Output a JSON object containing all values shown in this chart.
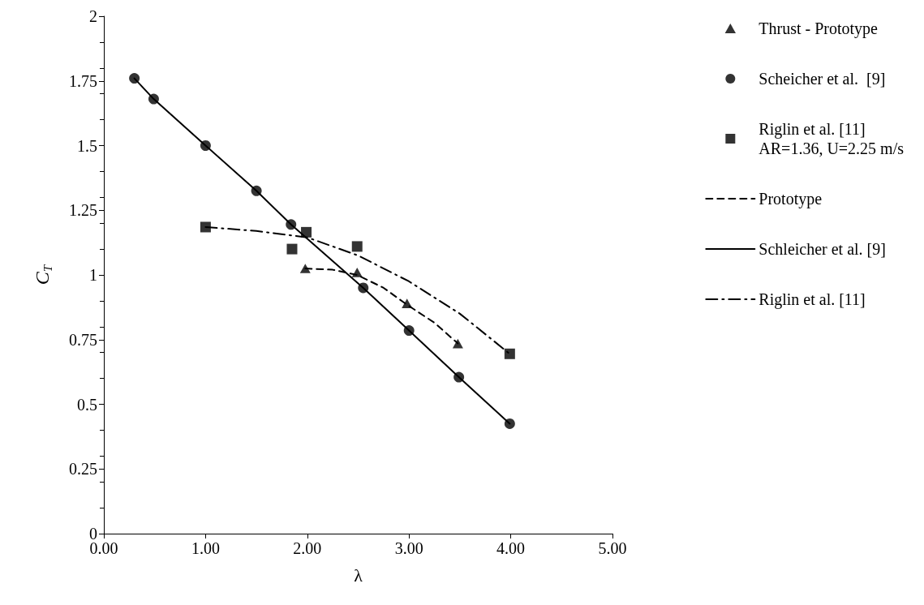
{
  "chart_data": {
    "type": "scatter",
    "xlabel": "λ",
    "ylabel": "C$_{T}$",
    "xlim": [
      0,
      5
    ],
    "xticks": [
      {
        "value": 0,
        "label": "0.00"
      },
      {
        "value": 1,
        "label": "1.00"
      },
      {
        "value": 2,
        "label": "2.00"
      },
      {
        "value": 3,
        "label": "3.00"
      },
      {
        "value": 4,
        "label": "4.00"
      },
      {
        "value": 5,
        "label": "5.00"
      }
    ],
    "ylim": [
      0,
      2
    ],
    "yticks": [
      0,
      0.25,
      0.5,
      0.75,
      1,
      1.25,
      1.5,
      1.75,
      2
    ],
    "grid": false,
    "legend": "right",
    "series": [
      {
        "name": "Thrust - Prototype",
        "type": "scatter",
        "marker": "triangle",
        "color": "#000000",
        "x": [
          1.98,
          2.49,
          2.98,
          3.48
        ],
        "values": [
          1.025,
          1.01,
          0.89,
          0.735
        ]
      },
      {
        "name": "Scheicher et al.  [9]",
        "type": "scatter",
        "marker": "circle",
        "color": "#000000",
        "x": [
          0.3,
          0.49,
          1.0,
          1.5,
          1.84,
          2.55,
          3.0,
          3.49,
          3.99
        ],
        "values": [
          1.76,
          1.68,
          1.5,
          1.325,
          1.195,
          0.95,
          0.785,
          0.605,
          0.425
        ]
      },
      {
        "name": "Riglin et al. [11]\nAR=1.36, U=2.25 m/s",
        "type": "scatter",
        "marker": "square",
        "color": "#000000",
        "x": [
          1.0,
          1.85,
          1.99,
          2.49,
          3.99
        ],
        "values": [
          1.185,
          1.1,
          1.165,
          1.11,
          0.695
        ]
      },
      {
        "name": "Prototype",
        "type": "line",
        "line_style": "dashed",
        "color": "#000000",
        "x": [
          1.98,
          2.25,
          2.49,
          2.75,
          2.98,
          3.25,
          3.48
        ],
        "values": [
          1.025,
          1.02,
          1.0,
          0.95,
          0.885,
          0.815,
          0.735
        ]
      },
      {
        "name": "Schleicher et al. [9]",
        "type": "line",
        "line_style": "solid",
        "color": "#000000",
        "x": [
          0.3,
          0.49,
          1.0,
          1.5,
          1.84,
          2.55,
          3.0,
          3.49,
          3.99
        ],
        "values": [
          1.76,
          1.68,
          1.5,
          1.325,
          1.195,
          0.95,
          0.785,
          0.605,
          0.425
        ]
      },
      {
        "name": "Riglin et al. [11]",
        "type": "line",
        "line_style": "dashdot",
        "color": "#000000",
        "x": [
          1.0,
          1.5,
          2.0,
          2.5,
          3.0,
          3.5,
          3.99
        ],
        "values": [
          1.185,
          1.17,
          1.145,
          1.075,
          0.975,
          0.85,
          0.695
        ]
      }
    ]
  }
}
